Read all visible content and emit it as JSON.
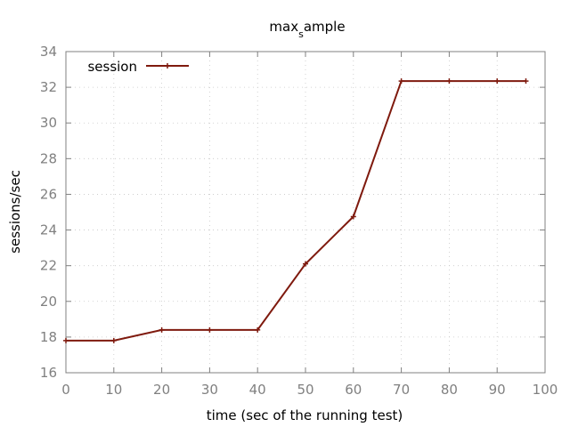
{
  "chart_data": {
    "type": "line",
    "title": "max",
    "title_subscript": "s",
    "title_suffix": "ample",
    "xlabel": "time (sec of the running test)",
    "ylabel": "sessions/sec",
    "xlim": [
      0,
      100
    ],
    "ylim": [
      16,
      34
    ],
    "xticks": [
      0,
      10,
      20,
      30,
      40,
      50,
      60,
      70,
      80,
      90,
      100
    ],
    "yticks": [
      16,
      18,
      20,
      22,
      24,
      26,
      28,
      30,
      32,
      34
    ],
    "grid": true,
    "legend_position": "top-left",
    "series": [
      {
        "name": "session",
        "color": "#7f1a0e",
        "x": [
          0,
          10,
          20,
          30,
          40,
          50,
          60,
          70,
          80,
          90,
          96
        ],
        "y": [
          17.8,
          17.8,
          18.4,
          18.4,
          18.4,
          22.1,
          24.75,
          32.35,
          32.35,
          32.35,
          32.35
        ]
      }
    ]
  }
}
